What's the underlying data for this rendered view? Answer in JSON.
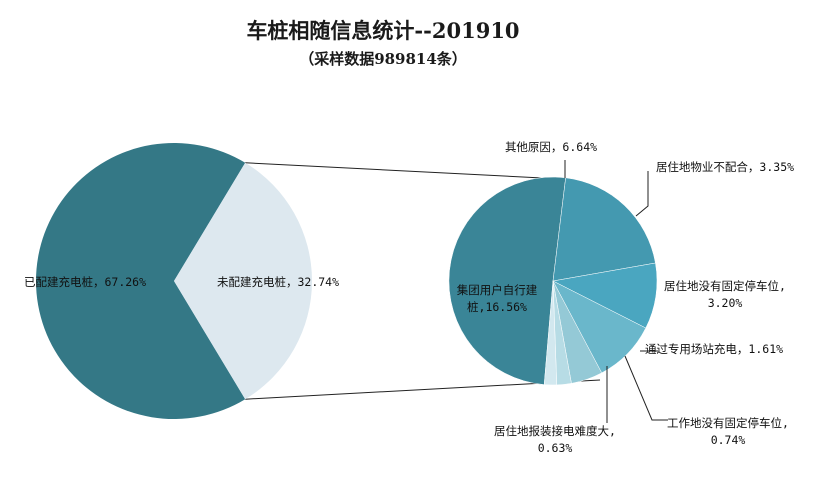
{
  "chart_data": {
    "type": "pie",
    "title": "车桩相随信息统计--201910",
    "subtitle": "（采样数据989814条）",
    "main": {
      "slices": [
        {
          "name": "已配建充电桩",
          "label": "已配建充电桩，67.26%",
          "value": 67.26,
          "color": "#347886"
        },
        {
          "name": "未配建充电桩",
          "label": "未配建充电桩，32.74%",
          "value": 32.74,
          "color": "#dde8ef"
        }
      ]
    },
    "breakdown": {
      "slices": [
        {
          "name": "集团用户自行建桩",
          "label_lines": [
            "集团用户自行建",
            "桩,16.56%"
          ],
          "value": 16.56,
          "color": "#3a8597"
        },
        {
          "name": "其他原因",
          "label_lines": [
            "其他原因，6.64%"
          ],
          "value": 6.64,
          "color": "#4499b0"
        },
        {
          "name": "居住地物业不配合",
          "label_lines": [
            "居住地物业不配合，3.35%"
          ],
          "value": 3.35,
          "color": "#4aa6c0"
        },
        {
          "name": "居住地没有固定停车位",
          "label_lines": [
            "居住地没有固定停车位,",
            "3.20%"
          ],
          "value": 3.2,
          "color": "#6ab7cb"
        },
        {
          "name": "通过专用场站充电",
          "label_lines": [
            "通过专用场站充电，1.61%"
          ],
          "value": 1.61,
          "color": "#94c9d6"
        },
        {
          "name": "工作地没有固定停车位",
          "label_lines": [
            "工作地没有固定停车位,",
            "0.74%"
          ],
          "value": 0.74,
          "color": "#b7dce5"
        },
        {
          "name": "居住地报装接电难度大",
          "label_lines": [
            "居住地报装接电难度大,",
            "0.63%"
          ],
          "value": 0.63,
          "color": "#d2e8ef"
        }
      ]
    },
    "legend": "none"
  }
}
